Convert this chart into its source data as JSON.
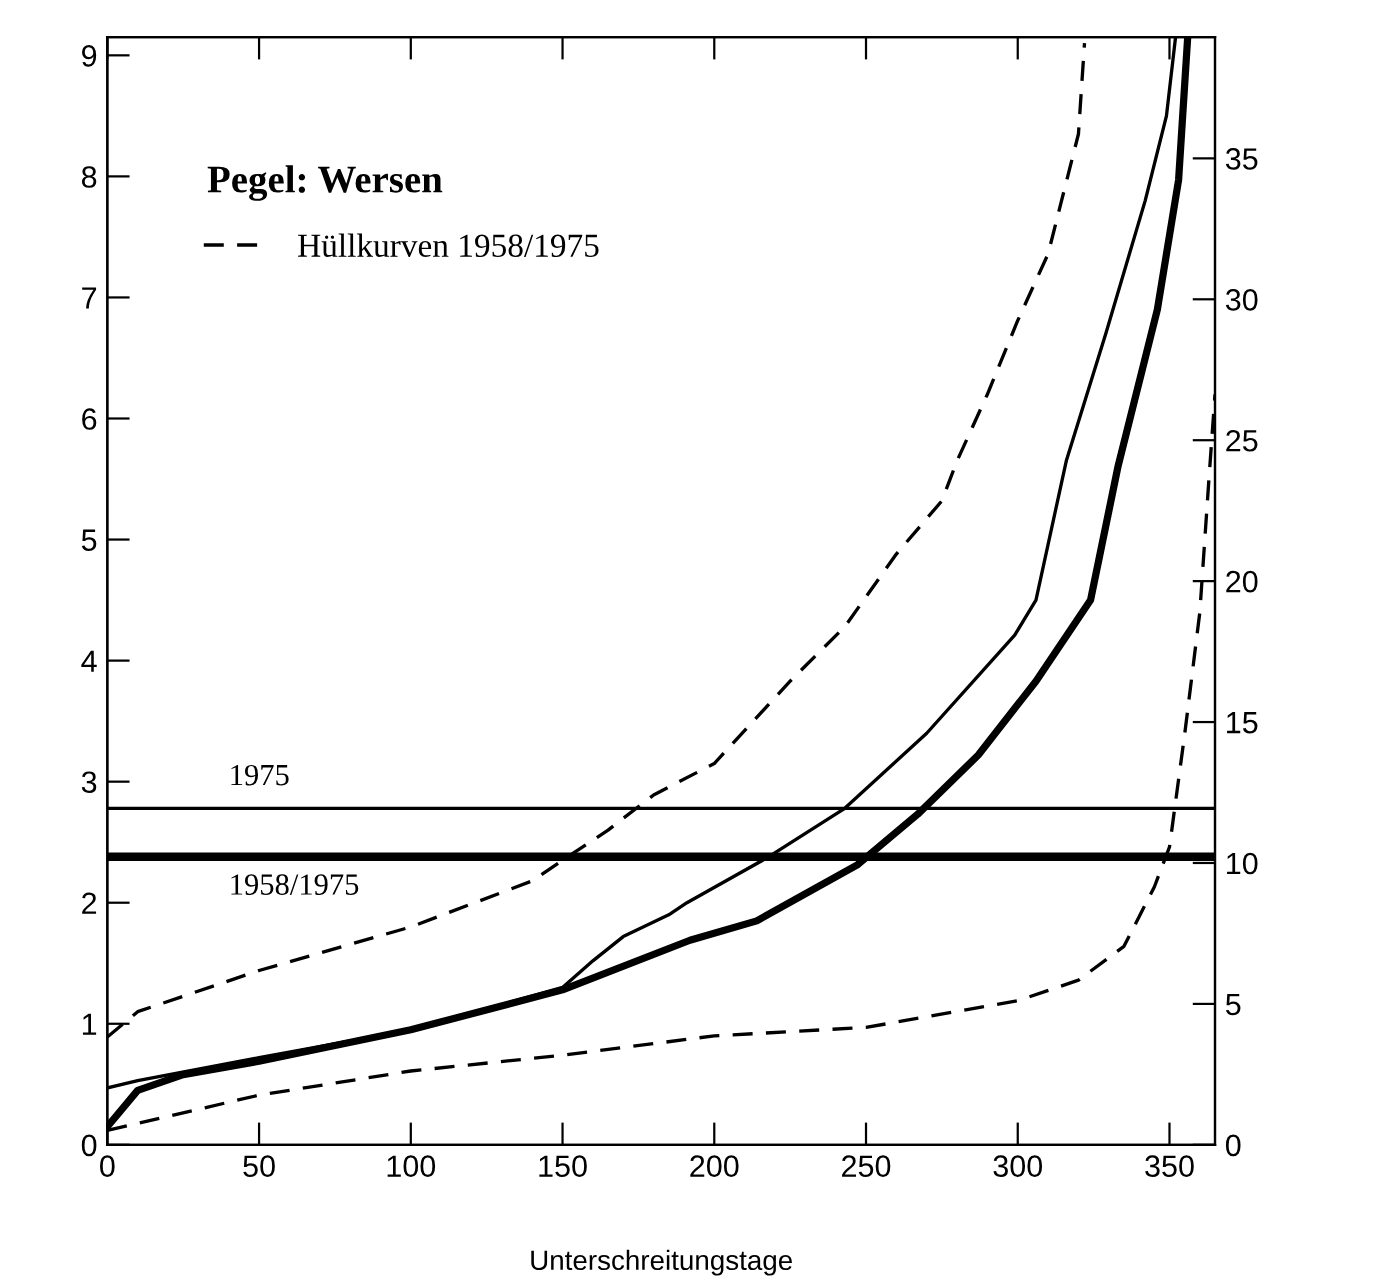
{
  "chart_data": {
    "type": "line",
    "title": "Pegel: Wersen",
    "xlabel": "Unterschreitungstage",
    "xlim": [
      0,
      365
    ],
    "xticks": [
      0,
      50,
      100,
      150,
      200,
      250,
      300,
      350
    ],
    "ylim": [
      0,
      9.15
    ],
    "yticks": [
      0,
      1,
      2,
      3,
      4,
      5,
      6,
      7,
      8,
      9
    ],
    "y2lim": [
      0,
      39.3
    ],
    "y2ticks": [
      0,
      5,
      10,
      15,
      20,
      25,
      30,
      35
    ],
    "legend": "top left",
    "grid": false,
    "marker": "none",
    "series": [
      {
        "name": "Hüllkurven 1958/1975",
        "color": "#000000",
        "line_style": "dashed",
        "x": [
          0,
          10,
          50,
          100,
          140,
          150,
          165,
          180,
          200,
          225,
          243,
          260,
          275,
          280,
          290,
          300,
          310,
          320,
          322
        ],
        "values": [
          0.89,
          1.1,
          1.44,
          1.8,
          2.18,
          2.35,
          2.6,
          2.89,
          3.15,
          3.83,
          4.28,
          4.88,
          5.32,
          5.65,
          6.2,
          6.81,
          7.36,
          8.35,
          9.1
        ]
      },
      {
        "color": "#000000",
        "line_style": "dashed",
        "x": [
          0,
          50,
          100,
          150,
          200,
          250,
          300,
          320,
          335,
          345,
          350,
          355,
          360,
          363,
          365
        ],
        "values": [
          0.12,
          0.41,
          0.61,
          0.74,
          0.9,
          0.97,
          1.19,
          1.36,
          1.64,
          2.13,
          2.46,
          3.39,
          4.4,
          5.5,
          6.2
        ]
      },
      {
        "color": "#000000",
        "line_style": "solid",
        "x": [
          0,
          10,
          50,
          100,
          150,
          160,
          170,
          185,
          191,
          218,
          243,
          270,
          299,
          306,
          316,
          329,
          342,
          349,
          352
        ],
        "values": [
          0.47,
          0.53,
          0.72,
          0.95,
          1.3,
          1.52,
          1.72,
          1.9,
          2.0,
          2.38,
          2.78,
          3.4,
          4.21,
          4.5,
          5.65,
          6.7,
          7.8,
          8.5,
          9.15
        ]
      },
      {
        "color": "#000000",
        "line_style": "solid",
        "x": [
          0,
          10,
          25,
          50,
          100,
          150,
          192,
          214,
          247,
          267,
          287,
          306,
          324,
          333,
          346,
          353,
          356
        ],
        "values": [
          0.15,
          0.45,
          0.58,
          0.69,
          0.95,
          1.28,
          1.69,
          1.85,
          2.31,
          2.73,
          3.22,
          3.83,
          4.5,
          5.6,
          6.9,
          7.97,
          9.15
        ]
      }
    ],
    "ref_lines": [
      {
        "axis": "y",
        "value": 2.78,
        "color": "#000000",
        "line_style": "solid"
      },
      {
        "axis": "y",
        "value": 2.38,
        "color": "#000000",
        "line_style": "solid"
      }
    ],
    "annotations": [
      {
        "text": "1975",
        "x": 40,
        "y": 2.78
      },
      {
        "text": "1958/1975",
        "x": 40,
        "y": 2.38
      }
    ]
  }
}
